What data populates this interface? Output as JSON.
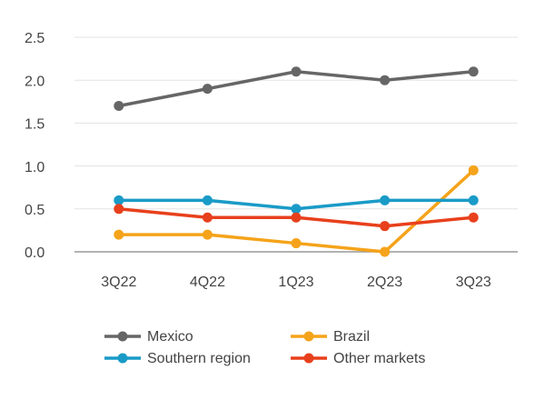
{
  "chart_data": {
    "type": "line",
    "categories": [
      "3Q22",
      "4Q22",
      "1Q23",
      "2Q23",
      "3Q23"
    ],
    "series": [
      {
        "name": "Mexico",
        "color": "#666666",
        "values": [
          1.7,
          1.9,
          2.1,
          2.0,
          2.1
        ]
      },
      {
        "name": "Brazil",
        "color": "#f5a31a",
        "values": [
          0.2,
          0.2,
          0.1,
          0.0,
          0.95
        ]
      },
      {
        "name": "Southern region",
        "color": "#1a9bc7",
        "values": [
          0.6,
          0.6,
          0.5,
          0.6,
          0.6
        ]
      },
      {
        "name": "Other markets",
        "color": "#e8401c",
        "values": [
          0.5,
          0.4,
          0.4,
          0.3,
          0.4
        ]
      }
    ],
    "ylim": [
      0,
      2.5
    ],
    "yticks": [
      {
        "value": 0,
        "label": "0.0"
      },
      0.5,
      {
        "value": 1,
        "label": "1.0"
      },
      1.5,
      {
        "value": 2,
        "label": "2.0"
      },
      2.5
    ],
    "grid": true
  }
}
